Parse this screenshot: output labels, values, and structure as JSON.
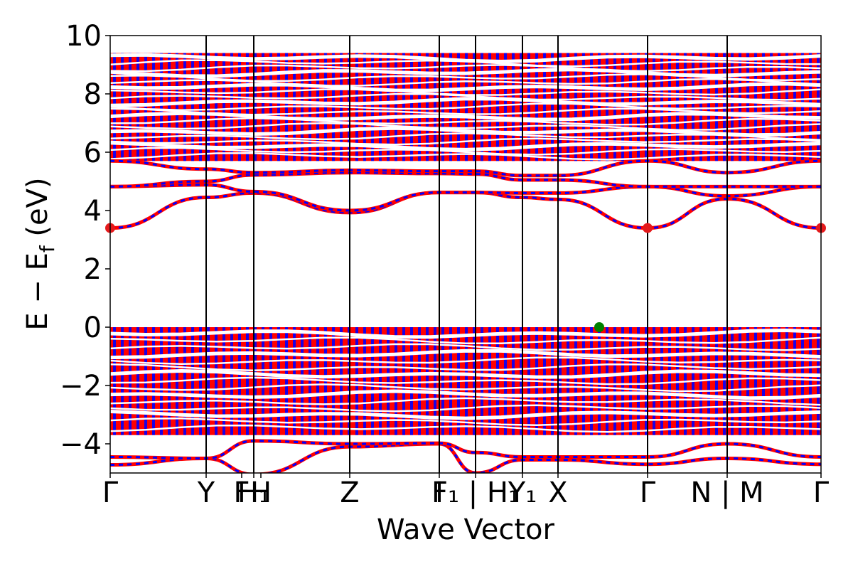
{
  "chart_data": {
    "type": "line",
    "title": "",
    "xlabel": "Wave Vector",
    "ylabel": "E − Ef",
    "ylabel_parts": {
      "main": "E − E",
      "sub": "f",
      "unit": " (eV)"
    },
    "ylim": [
      -5,
      10
    ],
    "yticks": [
      -4,
      -2,
      0,
      2,
      4,
      6,
      8,
      10
    ],
    "ytick_labels": [
      "−4",
      "−2",
      "0",
      "2",
      "4",
      "6",
      "8",
      "10"
    ],
    "xlim": [
      0,
      1
    ],
    "kpath": [
      {
        "label": "Γ",
        "x": 0.0
      },
      {
        "label": "Y",
        "x": 0.135
      },
      {
        "label": "F",
        "x": 0.185
      },
      {
        "label": "H₁",
        "x": 0.202
      },
      {
        "label": "H",
        "x": 0.212
      },
      {
        "label": "Z",
        "x": 0.337
      },
      {
        "label": "I",
        "x": 0.463
      },
      {
        "label": "F₁ | H₁",
        "x": 0.514
      },
      {
        "label": "Y₁",
        "x": 0.58
      },
      {
        "label": "X",
        "x": 0.63
      },
      {
        "label": "Γ",
        "x": 0.756
      },
      {
        "label": "N | M",
        "x": 0.868
      },
      {
        "label": "Γ",
        "x": 1.0
      }
    ],
    "vertical_lines_x": [
      0.135,
      0.202,
      0.337,
      0.463,
      0.514,
      0.58,
      0.63,
      0.756,
      0.868
    ],
    "series_colors": {
      "spin_up": "#ff0000",
      "spin_down": "#0000ff"
    },
    "cbm_points": [
      {
        "x": 0.0,
        "y": 3.4
      },
      {
        "x": 0.756,
        "y": 3.4
      },
      {
        "x": 1.0,
        "y": 3.4
      }
    ],
    "vbm_point": {
      "x": 0.688,
      "y": 0.0
    },
    "cbm_color": "#e41a1c",
    "vbm_color": "#008000",
    "conduction_bands": [
      {
        "name": "cb1",
        "x": [
          0,
          0.135,
          0.202,
          0.337,
          0.463,
          0.514,
          0.58,
          0.63,
          0.756,
          0.868,
          1.0
        ],
        "y": [
          3.4,
          4.45,
          4.6,
          3.93,
          4.62,
          4.62,
          4.45,
          4.38,
          3.4,
          4.4,
          3.4
        ]
      },
      {
        "name": "cb2",
        "x": [
          0,
          0.135,
          0.202,
          0.337,
          0.463,
          0.514,
          0.58,
          0.63,
          0.756,
          0.868,
          1.0
        ],
        "y": [
          4.82,
          4.88,
          4.65,
          4.0,
          4.62,
          4.62,
          4.6,
          4.6,
          4.82,
          4.5,
          4.82
        ]
      },
      {
        "name": "cb3",
        "x": [
          0,
          0.135,
          0.202,
          0.337,
          0.463,
          0.514,
          0.58,
          0.63,
          0.756,
          0.868,
          1.0
        ],
        "y": [
          4.82,
          5.0,
          5.22,
          5.3,
          5.27,
          5.25,
          5.05,
          5.05,
          4.82,
          4.82,
          4.82
        ]
      },
      {
        "name": "cb4",
        "x": [
          0,
          0.135,
          0.202,
          0.337,
          0.463,
          0.514,
          0.58,
          0.63,
          0.756,
          0.868,
          1.0
        ],
        "y": [
          5.7,
          5.42,
          5.3,
          5.38,
          5.35,
          5.35,
          5.2,
          5.2,
          5.7,
          5.3,
          5.7
        ]
      }
    ],
    "valence_lower_bands": [
      {
        "name": "vb-low1",
        "x": [
          0,
          0.135,
          0.202,
          0.337,
          0.463,
          0.514,
          0.58,
          0.63,
          0.756,
          0.868,
          1.0
        ],
        "y": [
          -4.72,
          -4.5,
          -5.05,
          -4.1,
          -4.0,
          -5.0,
          -4.55,
          -4.55,
          -4.7,
          -4.5,
          -4.7
        ]
      },
      {
        "name": "vb-low2",
        "x": [
          0,
          0.135,
          0.202,
          0.337,
          0.463,
          0.514,
          0.58,
          0.63,
          0.756,
          0.868,
          1.0
        ],
        "y": [
          -4.45,
          -4.5,
          -3.9,
          -4.0,
          -3.98,
          -4.3,
          -4.45,
          -4.45,
          -4.45,
          -4.0,
          -4.45
        ]
      }
    ],
    "bulk_regions": [
      {
        "name": "valence-bulk",
        "ymin": -3.7,
        "ymax": 0.0
      },
      {
        "name": "conduction-bulk",
        "ymin": 5.7,
        "ymax": 9.4
      }
    ]
  }
}
